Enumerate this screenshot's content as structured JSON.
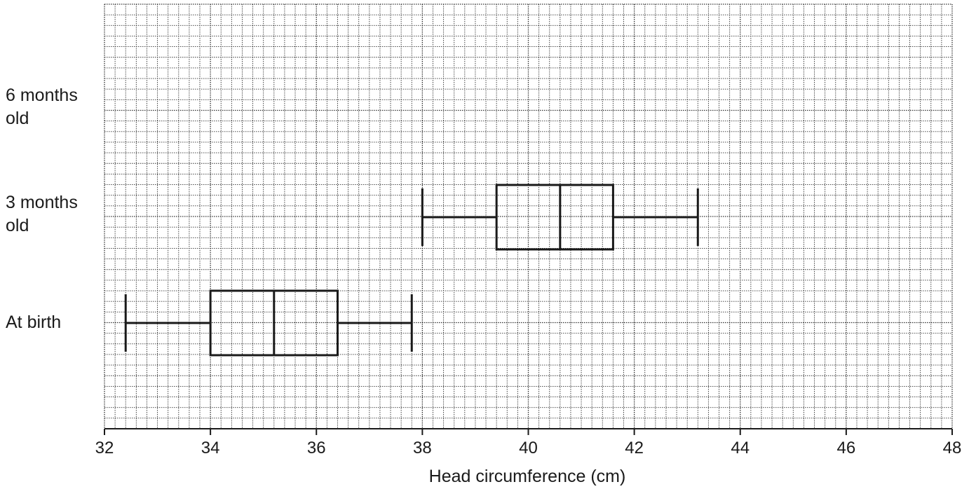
{
  "chart_data": {
    "type": "boxplot",
    "title": "",
    "xlabel": "Head circumference (cm)",
    "ylabel": "",
    "xlim": [
      32,
      48
    ],
    "xticks": [
      32,
      34,
      36,
      38,
      40,
      42,
      44,
      46,
      48
    ],
    "xtick_labels": [
      "32",
      "34",
      "36",
      "38",
      "40",
      "42",
      "44",
      "46",
      "48"
    ],
    "grid": true,
    "grid_minor_step": 0.2,
    "grid_major_step": 2,
    "categories": [
      "6 months\nold",
      "3 months\nold",
      "At birth"
    ],
    "series": [
      {
        "category": "6 months\nold",
        "min": null,
        "q1": null,
        "median": null,
        "q3": null,
        "max": null
      },
      {
        "category": "3 months\nold",
        "min": 38.0,
        "q1": 39.4,
        "median": 40.6,
        "q3": 41.6,
        "max": 43.2
      },
      {
        "category": "At birth",
        "min": 32.4,
        "q1": 34.0,
        "median": 35.2,
        "q3": 36.4,
        "max": 37.8
      }
    ],
    "colors": {
      "box": "#1a1a1a",
      "grid": "#333333",
      "axis": "#1a1a1a"
    }
  }
}
